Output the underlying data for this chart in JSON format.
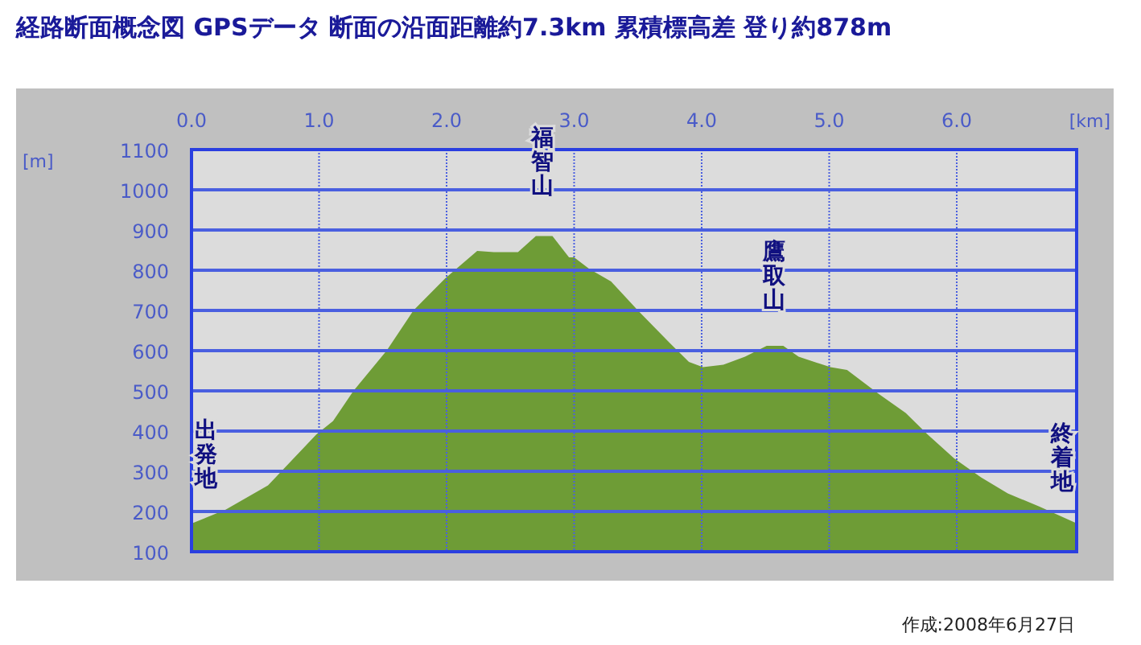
{
  "chart_data": {
    "type": "area",
    "title": "経路断面概念図 GPSデータ 断面の沿面距離約7.3km 累積標高差 登り約878m",
    "xlabel": "[km]",
    "ylabel": "[m]",
    "x": [
      0,
      0.27,
      0.6,
      0.98,
      1.11,
      1.27,
      1.53,
      1.74,
      1.99,
      2.24,
      2.37,
      2.56,
      2.7,
      2.83,
      2.96,
      3.0,
      3.12,
      3.29,
      3.5,
      3.75,
      3.9,
      4.01,
      4.17,
      4.34,
      4.51,
      4.64,
      4.76,
      5.01,
      5.14,
      5.39,
      5.6,
      5.77,
      5.98,
      6.19,
      6.4,
      6.65,
      6.93
    ],
    "series": [
      {
        "color": "#6e9c36",
        "values": [
          170,
          205,
          265,
          392,
          425,
          500,
          600,
          700,
          780,
          848,
          845,
          845,
          885,
          885,
          832,
          832,
          803,
          772,
          700,
          619,
          572,
          559,
          565,
          585,
          612,
          612,
          585,
          559,
          552,
          492,
          445,
          392,
          332,
          285,
          245,
          212,
          172
        ]
      }
    ],
    "xlim": [
      0,
      6.94
    ],
    "ylim": [
      100,
      1100
    ],
    "xticks": [
      {
        "value": 0,
        "label": "0.0"
      },
      {
        "value": 1,
        "label": "1.0"
      },
      {
        "value": 2,
        "label": "2.0"
      },
      {
        "value": 3,
        "label": "3.0"
      },
      {
        "value": 4,
        "label": "4.0"
      },
      {
        "value": 5,
        "label": "5.0"
      },
      {
        "value": 6,
        "label": "6.0"
      }
    ],
    "yticks": [
      100,
      200,
      300,
      400,
      500,
      600,
      700,
      800,
      900,
      1000,
      1100
    ],
    "grid": true,
    "annotations": [
      "出発地",
      "福智山",
      "鷹取山",
      "終着地",
      "作成:2008年6月27日"
    ]
  }
}
